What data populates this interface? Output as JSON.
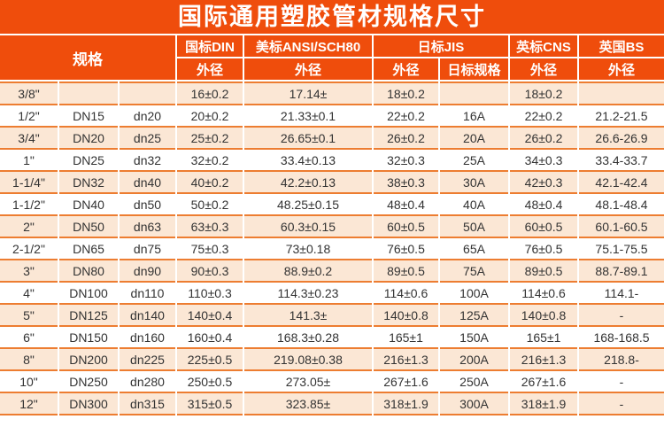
{
  "title": "国际通用塑胶管材规格尺寸",
  "colors": {
    "header_orange": "#EF4D0C",
    "border_orange": "#ED7D31",
    "row_peach": "#FBE7D5",
    "header_text": "#FFFFFF",
    "body_text": "#333333"
  },
  "table": {
    "spec_header": "规格",
    "groups": [
      {
        "label": "国标DIN",
        "sub": [
          "外径"
        ]
      },
      {
        "label": "美标ANSI/SCH80",
        "sub": [
          "外径"
        ]
      },
      {
        "label": "日标JIS",
        "sub": [
          "外径",
          "日标规格"
        ]
      },
      {
        "label": "英标CNS",
        "sub": [
          "外径"
        ]
      },
      {
        "label": "英国BS",
        "sub": [
          "外径"
        ]
      }
    ],
    "column_names": [
      "size-inch",
      "din-dn",
      "metric-dn",
      "din-od",
      "ansi-od",
      "jis-od",
      "jis-spec",
      "cns-od",
      "bs-od"
    ],
    "rows": [
      [
        "3/8\"",
        "",
        "",
        "16±0.2",
        "17.14±",
        "18±0.2",
        "",
        "18±0.2",
        ""
      ],
      [
        "1/2\"",
        "DN15",
        "dn20",
        "20±0.2",
        "21.33±0.1",
        "22±0.2",
        "16A",
        "22±0.2",
        "21.2-21.5"
      ],
      [
        "3/4\"",
        "DN20",
        "dn25",
        "25±0.2",
        "26.65±0.1",
        "26±0.2",
        "20A",
        "26±0.2",
        "26.6-26.9"
      ],
      [
        "1\"",
        "DN25",
        "dn32",
        "32±0.2",
        "33.4±0.13",
        "32±0.3",
        "25A",
        "34±0.3",
        "33.4-33.7"
      ],
      [
        "1-1/4\"",
        "DN32",
        "dn40",
        "40±0.2",
        "42.2±0.13",
        "38±0.3",
        "30A",
        "42±0.3",
        "42.1-42.4"
      ],
      [
        "1-1/2\"",
        "DN40",
        "dn50",
        "50±0.2",
        "48.25±0.15",
        "48±0.4",
        "40A",
        "48±0.4",
        "48.1-48.4"
      ],
      [
        "2\"",
        "DN50",
        "dn63",
        "63±0.3",
        "60.3±0.15",
        "60±0.5",
        "50A",
        "60±0.5",
        "60.1-60.5"
      ],
      [
        "2-1/2\"",
        "DN65",
        "dn75",
        "75±0.3",
        "73±0.18",
        "76±0.5",
        "65A",
        "76±0.5",
        "75.1-75.5"
      ],
      [
        "3\"",
        "DN80",
        "dn90",
        "90±0.3",
        "88.9±0.2",
        "89±0.5",
        "75A",
        "89±0.5",
        "88.7-89.1"
      ],
      [
        "4\"",
        "DN100",
        "dn110",
        "110±0.3",
        "114.3±0.23",
        "114±0.6",
        "100A",
        "114±0.6",
        "114.1-"
      ],
      [
        "5\"",
        "DN125",
        "dn140",
        "140±0.4",
        "141.3±",
        "140±0.8",
        "125A",
        "140±0.8",
        "-"
      ],
      [
        "6\"",
        "DN150",
        "dn160",
        "160±0.4",
        "168.3±0.28",
        "165±1",
        "150A",
        "165±1",
        "168-168.5"
      ],
      [
        "8\"",
        "DN200",
        "dn225",
        "225±0.5",
        "219.08±0.38",
        "216±1.3",
        "200A",
        "216±1.3",
        "218.8-"
      ],
      [
        "10\"",
        "DN250",
        "dn280",
        "250±0.5",
        "273.05±",
        "267±1.6",
        "250A",
        "267±1.6",
        "-"
      ],
      [
        "12\"",
        "DN300",
        "dn315",
        "315±0.5",
        "323.85±",
        "318±1.9",
        "300A",
        "318±1.9",
        "-"
      ]
    ]
  }
}
